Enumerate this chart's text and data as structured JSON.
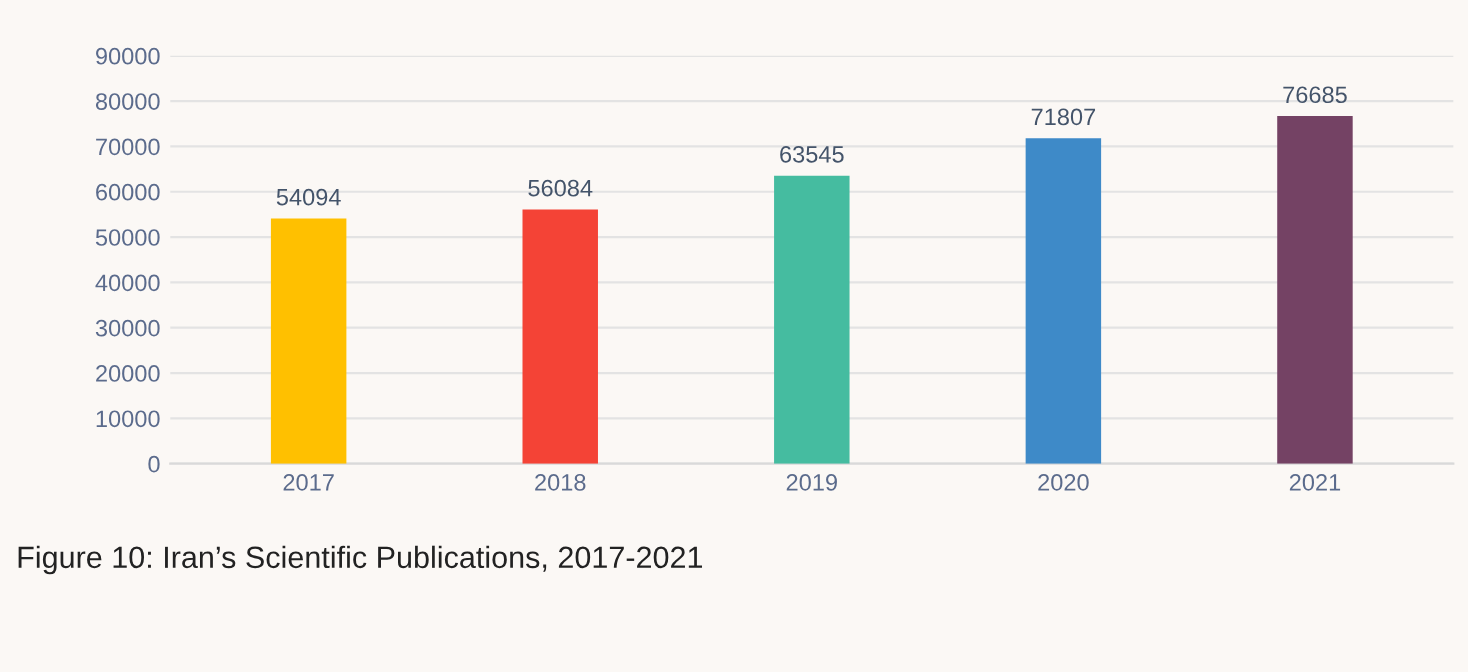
{
  "chart_data": {
    "type": "bar",
    "title": "Figure 10: Iran’s Scientific Publications, 2017-2021",
    "categories": [
      "2017",
      "2018",
      "2019",
      "2020",
      "2021"
    ],
    "values": [
      54094,
      56084,
      63545,
      71807,
      76685
    ],
    "colors": [
      "#ffc000",
      "#f44336",
      "#45bca0",
      "#3e8ac8",
      "#744264"
    ],
    "ylim": [
      0,
      90000
    ],
    "yticks": [
      0,
      10000,
      20000,
      30000,
      40000,
      50000,
      60000,
      70000,
      80000,
      90000
    ],
    "grid": "y",
    "data_labels": true,
    "legend": false
  }
}
